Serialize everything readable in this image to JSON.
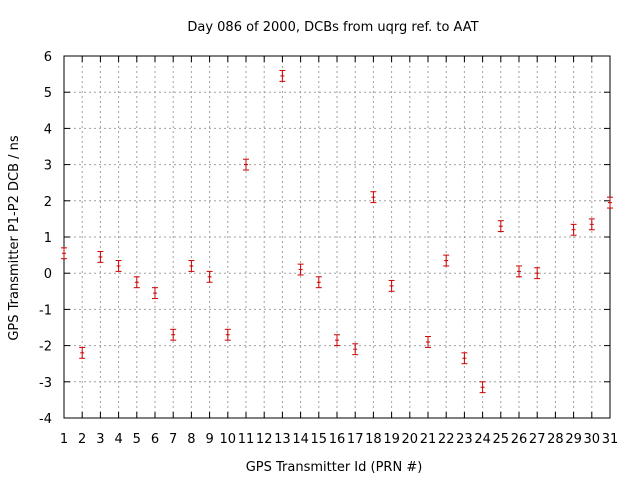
{
  "chart_data": {
    "type": "scatter",
    "title": "Day 086 of 2000, DCBs from uqrg ref. to AAT",
    "xlabel": "GPS Transmitter Id (PRN #)",
    "ylabel": "GPS Transmitter P1-P2 DCB / ns",
    "xlim": [
      1,
      31
    ],
    "ylim": [
      -4,
      6
    ],
    "x_ticks": [
      1,
      2,
      3,
      4,
      5,
      6,
      7,
      8,
      9,
      10,
      11,
      12,
      13,
      14,
      15,
      16,
      17,
      18,
      19,
      20,
      21,
      22,
      23,
      24,
      25,
      26,
      27,
      28,
      29,
      30,
      31
    ],
    "y_ticks": [
      -4,
      -3,
      -2,
      -1,
      0,
      1,
      2,
      3,
      4,
      5,
      6
    ],
    "grid": true,
    "marker_color": "#cc0000",
    "points": [
      {
        "x": 1,
        "y": 0.55,
        "err": 0.15
      },
      {
        "x": 2,
        "y": -2.2,
        "err": 0.15
      },
      {
        "x": 3,
        "y": 0.45,
        "err": 0.15
      },
      {
        "x": 4,
        "y": 0.2,
        "err": 0.15
      },
      {
        "x": 5,
        "y": -0.25,
        "err": 0.15
      },
      {
        "x": 6,
        "y": -0.55,
        "err": 0.15
      },
      {
        "x": 7,
        "y": -1.7,
        "err": 0.15
      },
      {
        "x": 8,
        "y": 0.2,
        "err": 0.15
      },
      {
        "x": 9,
        "y": -0.1,
        "err": 0.15
      },
      {
        "x": 10,
        "y": -1.7,
        "err": 0.15
      },
      {
        "x": 11,
        "y": 3.0,
        "err": 0.15
      },
      {
        "x": 13,
        "y": 5.45,
        "err": 0.15
      },
      {
        "x": 14,
        "y": 0.1,
        "err": 0.15
      },
      {
        "x": 15,
        "y": -0.25,
        "err": 0.15
      },
      {
        "x": 16,
        "y": -1.85,
        "err": 0.15
      },
      {
        "x": 17,
        "y": -2.1,
        "err": 0.15
      },
      {
        "x": 18,
        "y": 2.1,
        "err": 0.15
      },
      {
        "x": 19,
        "y": -0.35,
        "err": 0.15
      },
      {
        "x": 21,
        "y": -1.9,
        "err": 0.15
      },
      {
        "x": 22,
        "y": 0.35,
        "err": 0.15
      },
      {
        "x": 23,
        "y": -2.35,
        "err": 0.15
      },
      {
        "x": 24,
        "y": -3.15,
        "err": 0.15
      },
      {
        "x": 25,
        "y": 1.3,
        "err": 0.15
      },
      {
        "x": 26,
        "y": 0.05,
        "err": 0.15
      },
      {
        "x": 27,
        "y": 0.0,
        "err": 0.15
      },
      {
        "x": 29,
        "y": 1.2,
        "err": 0.15
      },
      {
        "x": 30,
        "y": 1.35,
        "err": 0.15
      },
      {
        "x": 31,
        "y": 1.95,
        "err": 0.15
      }
    ]
  }
}
